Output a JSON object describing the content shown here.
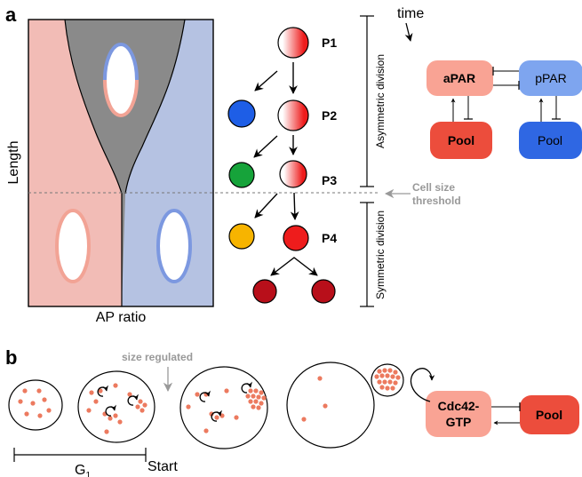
{
  "panel_a": {
    "letter": "a",
    "y_axis_label": "Length",
    "x_axis_label": "AP ratio",
    "time_label": "time",
    "cells": [
      {
        "label": "P1"
      },
      {
        "label": "P2"
      },
      {
        "label": "P3"
      },
      {
        "label": "P4"
      }
    ],
    "asym_label": "Asymmetric division",
    "sym_label": "Symmetric division",
    "threshold_label_line1": "Cell size",
    "threshold_label_line2": "threshold",
    "network": {
      "apar": "aPAR",
      "ppar": "pPAR",
      "pool_a": "Pool",
      "pool_p": "Pool"
    },
    "colors": {
      "anterior": "#f2bcb6",
      "posterior": "#b5c2e2",
      "gray": "#8a8a8a",
      "red": "#ee1c1c",
      "dark_red": "#b80f1a",
      "blue": "#1e5ee6",
      "green": "#16a33a",
      "orange": "#f7b400",
      "apar_fill": "#f9a394",
      "pool_red": "#ec4d3c",
      "ppar_fill": "#7ea5ef",
      "pool_blue": "#2f67e3"
    }
  },
  "panel_b": {
    "letter": "b",
    "size_regulated_label": "size regulated",
    "g1_label": "G",
    "g1_sub": "1",
    "start_label": "Start",
    "cdc42_line1": "Cdc42-",
    "cdc42_line2": "GTP",
    "pool": "Pool",
    "colors": {
      "dot": "#ec7a5f",
      "cdc42_fill": "#f9a394",
      "pool_red": "#ec4d3c"
    }
  }
}
